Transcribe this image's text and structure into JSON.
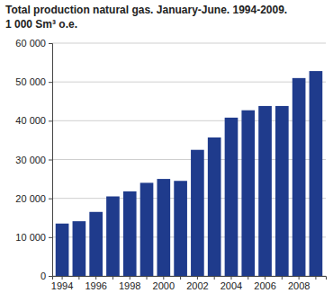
{
  "chart_data": {
    "type": "bar",
    "title": "Total production natural gas. January-June. 1994-2009.",
    "subtitle": "1 000 Sm³ o.e.",
    "categories": [
      "1994",
      null,
      "1996",
      null,
      "1998",
      null,
      "2000",
      null,
      "2002",
      null,
      "2004",
      null,
      "2006",
      null,
      "2008",
      null
    ],
    "values": [
      13500,
      14100,
      16500,
      20500,
      21800,
      24000,
      25000,
      24500,
      32500,
      35700,
      40800,
      42700,
      43800,
      43800,
      51000,
      52800
    ],
    "color": "#1f3b8c",
    "ylim": [
      0,
      60000
    ],
    "yticks": [
      0,
      {
        "value": 10000,
        "label": "10 000"
      },
      {
        "value": 20000,
        "label": "20 000"
      },
      {
        "value": 30000,
        "label": "30 000"
      },
      {
        "value": 40000,
        "label": "40 000"
      },
      {
        "value": 50000,
        "label": "50 000"
      },
      {
        "value": 60000,
        "label": "60 000"
      }
    ],
    "grid": true
  }
}
